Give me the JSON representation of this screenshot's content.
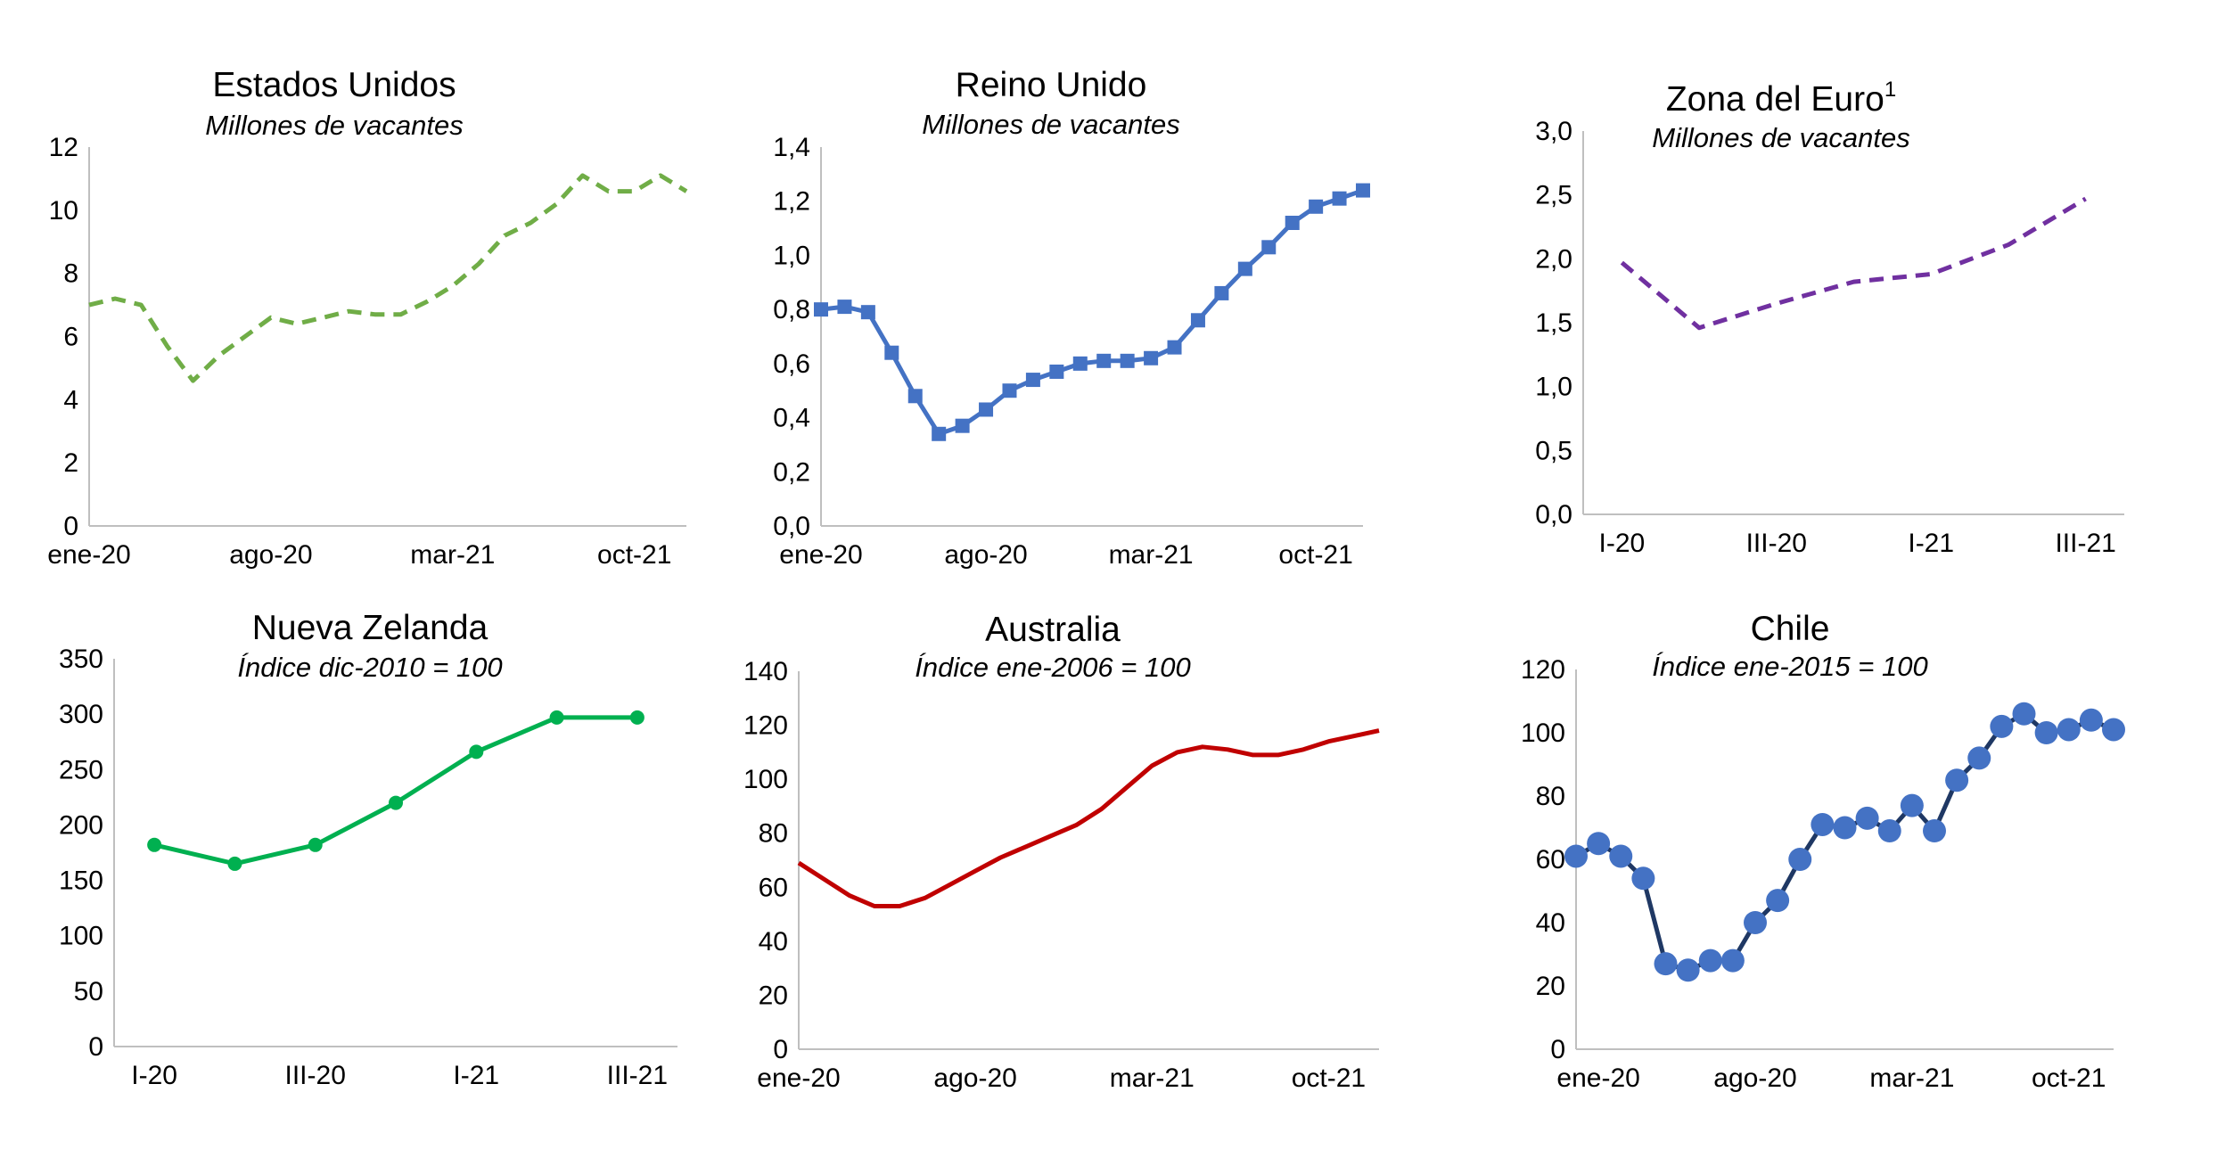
{
  "chart_data": [
    {
      "type": "line",
      "title": "Estados Unidos",
      "subtitle": "Millones de vacantes",
      "y_ticks": [
        "0",
        "2",
        "4",
        "6",
        "8",
        "10",
        "12"
      ],
      "ylim": [
        0,
        12
      ],
      "x_ticks": [
        "ene-20",
        "ago-20",
        "mar-21",
        "oct-21"
      ],
      "x_tick_index": [
        0,
        7,
        14,
        21
      ],
      "series": [
        {
          "color": "#70ad47",
          "dash": "dashed",
          "marker": "none",
          "values": [
            7.0,
            7.2,
            7.0,
            5.7,
            4.6,
            5.4,
            6.0,
            6.6,
            6.4,
            6.6,
            6.8,
            6.7,
            6.7,
            7.1,
            7.6,
            8.3,
            9.2,
            9.6,
            10.2,
            11.1,
            10.6,
            10.6,
            11.1,
            10.6
          ]
        }
      ]
    },
    {
      "type": "line",
      "title": "Reino Unido",
      "subtitle": "Millones de vacantes",
      "y_ticks": [
        "0,0",
        "0,2",
        "0,4",
        "0,6",
        "0,8",
        "1,0",
        "1,2",
        "1,4"
      ],
      "ylim": [
        0,
        1.4
      ],
      "x_ticks": [
        "ene-20",
        "ago-20",
        "mar-21",
        "oct-21"
      ],
      "x_tick_index": [
        0,
        7,
        14,
        21
      ],
      "series": [
        {
          "color": "#4472c4",
          "dash": "solid",
          "marker": "square",
          "values": [
            0.8,
            0.81,
            0.79,
            0.64,
            0.48,
            0.34,
            0.37,
            0.43,
            0.5,
            0.54,
            0.57,
            0.6,
            0.61,
            0.61,
            0.62,
            0.66,
            0.76,
            0.86,
            0.95,
            1.03,
            1.12,
            1.18,
            1.21,
            1.24
          ]
        }
      ]
    },
    {
      "type": "line",
      "title": "Zona del Euro",
      "title_sup": "1",
      "subtitle": "Millones de vacantes",
      "y_ticks": [
        "0,0",
        "0,5",
        "1,0",
        "1,5",
        "2,0",
        "2,5",
        "3,0"
      ],
      "ylim": [
        0,
        3
      ],
      "x_ticks": [
        "I-20",
        "III-20",
        "I-21",
        "III-21"
      ],
      "x_tick_index": [
        0,
        2,
        4,
        6
      ],
      "series": [
        {
          "color": "#7030a0",
          "dash": "dashed",
          "marker": "none",
          "values": [
            1.97,
            1.46,
            1.65,
            1.82,
            1.88,
            2.11,
            2.47
          ]
        }
      ]
    },
    {
      "type": "line",
      "title": "Nueva Zelanda",
      "subtitle": "Índice dic-2010 = 100",
      "y_ticks": [
        "0",
        "50",
        "100",
        "150",
        "200",
        "250",
        "300",
        "350"
      ],
      "ylim": [
        0,
        350
      ],
      "x_ticks": [
        "I-20",
        "III-20",
        "I-21",
        "III-21"
      ],
      "x_tick_index": [
        0,
        2,
        4,
        6
      ],
      "series": [
        {
          "color": "#00b050",
          "dash": "solid",
          "marker": "circle-small",
          "values": [
            182,
            165,
            182,
            220,
            266,
            297,
            297
          ]
        }
      ]
    },
    {
      "type": "line",
      "title": "Australia",
      "subtitle": "Índice ene-2006 = 100",
      "y_ticks": [
        "0",
        "20",
        "40",
        "60",
        "80",
        "100",
        "120",
        "140"
      ],
      "ylim": [
        0,
        140
      ],
      "x_ticks": [
        "ene-20",
        "ago-20",
        "mar-21",
        "oct-21"
      ],
      "x_tick_index": [
        0,
        7,
        14,
        21
      ],
      "series": [
        {
          "color": "#c00000",
          "dash": "solid",
          "marker": "none",
          "values": [
            69,
            63,
            57,
            53,
            53,
            56,
            61,
            66,
            71,
            75,
            79,
            83,
            89,
            97,
            105,
            110,
            112,
            111,
            109,
            109,
            111,
            114,
            116,
            118
          ]
        }
      ]
    },
    {
      "type": "line",
      "title": "Chile",
      "subtitle": "Índice ene-2015 = 100",
      "y_ticks": [
        "0",
        "20",
        "40",
        "60",
        "80",
        "100",
        "120"
      ],
      "ylim": [
        0,
        120
      ],
      "x_ticks": [
        "ene-20",
        "ago-20",
        "mar-21",
        "oct-21"
      ],
      "x_tick_index": [
        1,
        8,
        15,
        22
      ],
      "series": [
        {
          "color": "#1f3864",
          "marker_color": "#4472c4",
          "dash": "solid",
          "marker": "circle",
          "values": [
            61,
            65,
            61,
            54,
            27,
            25,
            28,
            28,
            40,
            47,
            60,
            71,
            70,
            73,
            69,
            77,
            69,
            85,
            92,
            102,
            106,
            100,
            101,
            104,
            101
          ]
        }
      ]
    }
  ]
}
